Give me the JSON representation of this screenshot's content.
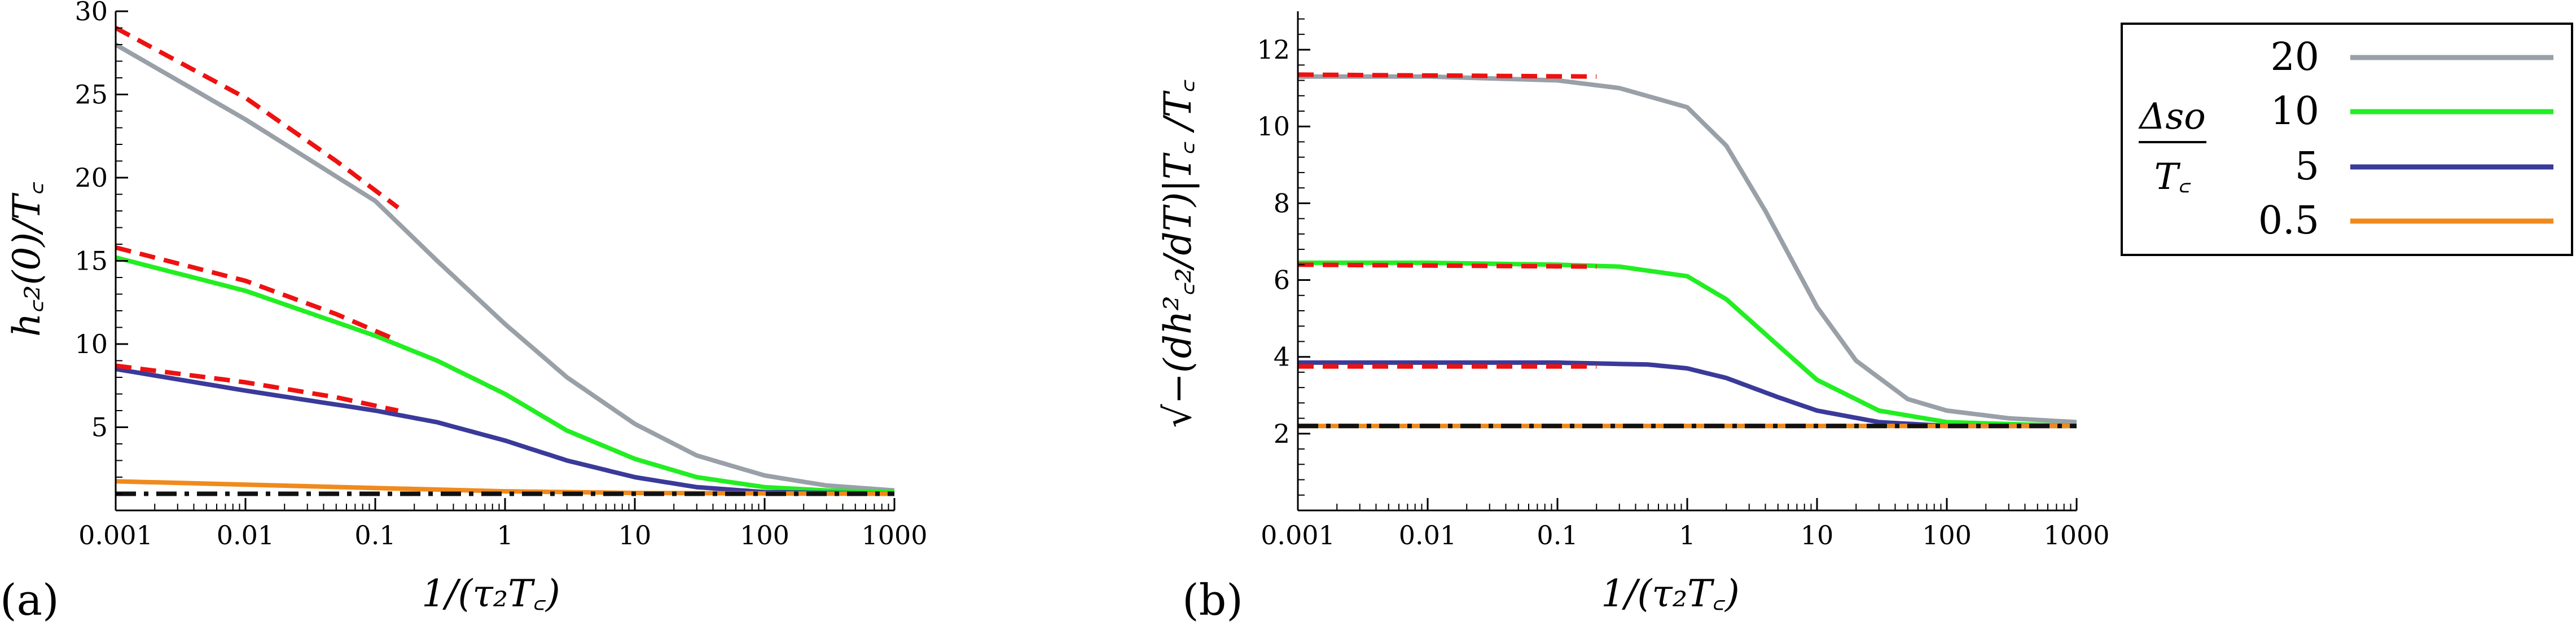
{
  "chart_data": [
    {
      "panel": "(a)",
      "type": "line",
      "xscale": "log",
      "xlabel": "1/(τ₂T꜀)",
      "ylabel": "h꜀₂(0)/T꜀",
      "xlim": [
        0.001,
        1000
      ],
      "ylim": [
        0,
        30
      ],
      "xticks": [
        "0.001",
        "0.01",
        "0.1",
        "1",
        "10",
        "100",
        "1000"
      ],
      "yticks": [
        "5",
        "10",
        "15",
        "20",
        "25",
        "30"
      ],
      "series": [
        {
          "name": "20",
          "color": "#9aa0a8",
          "style": "solid",
          "x": [
            0.001,
            0.01,
            0.1,
            0.3,
            1,
            3,
            10,
            30,
            100,
            300,
            1000
          ],
          "y": [
            28,
            23.5,
            18.6,
            15,
            11.2,
            8,
            5.2,
            3.3,
            2.1,
            1.5,
            1.2
          ]
        },
        {
          "name": "10",
          "color": "#22ee22",
          "style": "solid",
          "x": [
            0.001,
            0.01,
            0.1,
            0.3,
            1,
            3,
            10,
            30,
            100,
            300,
            1000
          ],
          "y": [
            15.2,
            13.2,
            10.5,
            9,
            7,
            4.8,
            3.1,
            2,
            1.4,
            1.2,
            1.1
          ]
        },
        {
          "name": "5",
          "color": "#3a3a9a",
          "style": "solid",
          "x": [
            0.001,
            0.01,
            0.1,
            0.3,
            1,
            3,
            10,
            30,
            100,
            300,
            1000
          ],
          "y": [
            8.5,
            7.2,
            6,
            5.3,
            4.2,
            3,
            2,
            1.4,
            1.1,
            1.05,
            1.0
          ]
        },
        {
          "name": "0.5",
          "color": "#f08a1c",
          "style": "solid",
          "x": [
            0.001,
            0.01,
            0.1,
            1,
            10,
            100,
            1000
          ],
          "y": [
            1.75,
            1.55,
            1.35,
            1.15,
            1.05,
            1.02,
            1.0
          ]
        },
        {
          "color": "#111111",
          "style": "dashdot",
          "x": [
            0.001,
            1000
          ],
          "y": [
            1.0,
            1.0
          ]
        },
        {
          "color": "#ee1111",
          "style": "dashed",
          "x": [
            0.001,
            0.01,
            0.05,
            0.15
          ],
          "y": [
            29,
            24.8,
            21,
            18.2
          ]
        },
        {
          "color": "#ee1111",
          "style": "dashed",
          "x": [
            0.001,
            0.01,
            0.05,
            0.15
          ],
          "y": [
            15.8,
            13.8,
            11.8,
            10.2
          ]
        },
        {
          "color": "#ee1111",
          "style": "dashed",
          "x": [
            0.001,
            0.01,
            0.05,
            0.15
          ],
          "y": [
            8.7,
            7.7,
            6.8,
            6.0
          ]
        }
      ]
    },
    {
      "panel": "(b)",
      "type": "line",
      "xscale": "log",
      "xlabel": "1/(τ₂T꜀)",
      "ylabel": "√−(dh²꜀₂/dT)|T꜀ /T꜀",
      "xlim": [
        0.001,
        1000
      ],
      "ylim": [
        0,
        13
      ],
      "xticks": [
        "0.001",
        "0.01",
        "0.1",
        "1",
        "10",
        "100",
        "1000"
      ],
      "yticks": [
        "2",
        "4",
        "6",
        "8",
        "10",
        "12"
      ],
      "series": [
        {
          "name": "20",
          "color": "#9aa0a8",
          "style": "solid",
          "x": [
            0.001,
            0.01,
            0.1,
            0.3,
            1,
            2,
            4,
            10,
            20,
            50,
            100,
            300,
            1000
          ],
          "y": [
            11.3,
            11.3,
            11.2,
            11.0,
            10.5,
            9.5,
            7.8,
            5.3,
            3.9,
            2.9,
            2.6,
            2.4,
            2.3
          ]
        },
        {
          "name": "10",
          "color": "#22ee22",
          "style": "solid",
          "x": [
            0.001,
            0.01,
            0.1,
            0.3,
            1,
            2,
            5,
            10,
            30,
            100,
            300,
            1000
          ],
          "y": [
            6.45,
            6.45,
            6.4,
            6.35,
            6.1,
            5.5,
            4.3,
            3.4,
            2.6,
            2.3,
            2.25,
            2.2
          ]
        },
        {
          "name": "5",
          "color": "#3a3a9a",
          "style": "solid",
          "x": [
            0.001,
            0.01,
            0.1,
            0.5,
            1,
            2,
            5,
            10,
            30,
            100,
            1000
          ],
          "y": [
            3.85,
            3.85,
            3.85,
            3.8,
            3.7,
            3.45,
            2.95,
            2.6,
            2.3,
            2.2,
            2.2
          ]
        },
        {
          "name": "0.5",
          "color": "#f08a1c",
          "style": "solid",
          "x": [
            0.001,
            1000
          ],
          "y": [
            2.2,
            2.2
          ]
        },
        {
          "color": "#111111",
          "style": "dashdot",
          "x": [
            0.001,
            1000
          ],
          "y": [
            2.2,
            2.2
          ]
        },
        {
          "color": "#ee1111",
          "style": "dashed",
          "x": [
            0.001,
            0.2
          ],
          "y": [
            11.35,
            11.3
          ]
        },
        {
          "color": "#ee1111",
          "style": "dashed",
          "x": [
            0.001,
            0.2
          ],
          "y": [
            6.4,
            6.35
          ]
        },
        {
          "color": "#ee1111",
          "style": "dashed",
          "x": [
            0.001,
            0.2
          ],
          "y": [
            3.75,
            3.75
          ]
        }
      ]
    }
  ],
  "legend": {
    "title_numerator": "Δso",
    "title_denominator": "T꜀",
    "entries": [
      {
        "label": "20",
        "color": "#9aa0a8"
      },
      {
        "label": "10",
        "color": "#22ee22"
      },
      {
        "label": "5",
        "color": "#3a3a9a"
      },
      {
        "label": "0.5",
        "color": "#f08a1c"
      }
    ]
  }
}
